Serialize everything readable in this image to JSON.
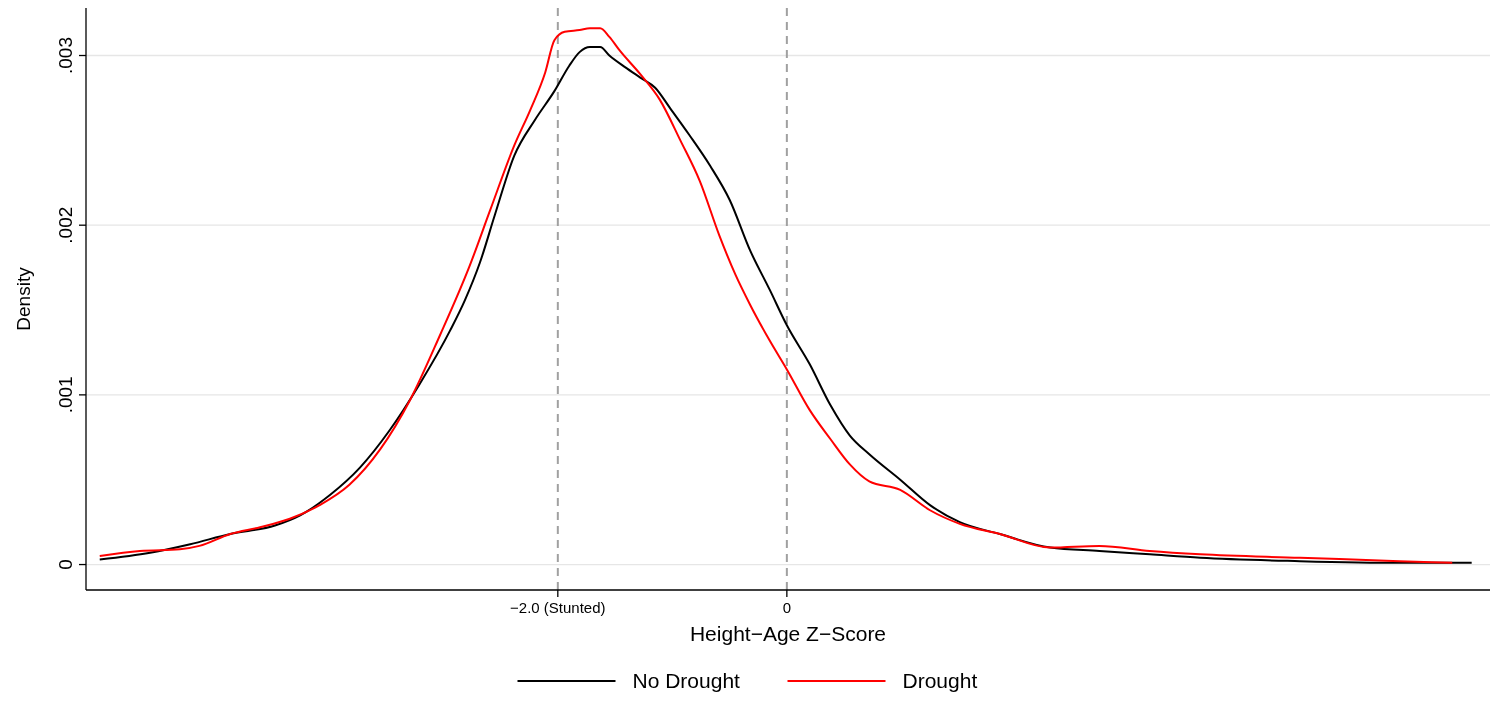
{
  "chart_data": {
    "type": "line",
    "xlabel": "Height−Age Z−Score",
    "ylabel": "Density",
    "xlim": [
      -6.12,
      6.14
    ],
    "ylim": [
      -0.00015,
      0.00328
    ],
    "xticks": [
      {
        "value": -2,
        "label": "−2.0 (Stunted)"
      },
      0
    ],
    "yticks": [
      {
        "value": 0,
        "label": "0"
      },
      {
        "value": 0.001,
        "label": ".001"
      },
      {
        "value": 0.002,
        "label": ".002"
      },
      {
        "value": 0.003,
        "label": ".003"
      }
    ],
    "grid": "y",
    "legend": "bottom",
    "line_style": "solid",
    "marker": "none",
    "ref_lines": [
      {
        "axis": "x",
        "value": -2,
        "color": "#a0a0a0",
        "line_style": "dashed"
      },
      {
        "axis": "x",
        "value": 0,
        "color": "#a0a0a0",
        "line_style": "dashed"
      }
    ],
    "series": [
      {
        "name": "No Drought",
        "color": "#000000",
        "x": [
          -6.0,
          -5.56,
          -5.21,
          -4.86,
          -4.47,
          -4.25,
          -3.99,
          -3.73,
          -3.47,
          -3.21,
          -2.94,
          -2.81,
          -2.68,
          -2.55,
          -2.38,
          -2.2,
          -2.03,
          -1.9,
          -1.81,
          -1.72,
          -1.63,
          -1.55,
          -1.41,
          -1.28,
          -1.15,
          -1.02,
          -0.85,
          -0.67,
          -0.5,
          -0.32,
          -0.15,
          0,
          0.2,
          0.38,
          0.55,
          0.72,
          0.99,
          1.25,
          1.51,
          1.86,
          2.3,
          2.73,
          3.17,
          3.61,
          4.48,
          5.35,
          5.98
        ],
        "values": [
          3e-05,
          7e-05,
          0.00012,
          0.00018,
          0.00023,
          0.00029,
          0.00041,
          0.00057,
          0.00079,
          0.00106,
          0.00138,
          0.00156,
          0.00178,
          0.00206,
          0.00241,
          0.00262,
          0.00279,
          0.00294,
          0.00302,
          0.00305,
          0.00305,
          0.003,
          0.00293,
          0.00287,
          0.00281,
          0.00269,
          0.00253,
          0.00235,
          0.00215,
          0.00185,
          0.00162,
          0.00141,
          0.00118,
          0.00094,
          0.00076,
          0.00065,
          0.0005,
          0.00035,
          0.00025,
          0.00018,
          0.0001,
          8e-05,
          6e-05,
          4e-05,
          2e-05,
          1e-05,
          1e-05
        ]
      },
      {
        "name": "Drought",
        "color": "#ff0000",
        "x": [
          -6.0,
          -5.65,
          -5.3,
          -5.13,
          -4.86,
          -4.6,
          -4.34,
          -4.08,
          -3.82,
          -3.55,
          -3.29,
          -3.03,
          -2.77,
          -2.59,
          -2.38,
          -2.24,
          -2.11,
          -2.03,
          -1.94,
          -1.81,
          -1.72,
          -1.63,
          -1.55,
          -1.46,
          -1.28,
          -1.11,
          -0.93,
          -0.76,
          -0.59,
          -0.45,
          -0.32,
          -0.15,
          0,
          0.2,
          0.38,
          0.55,
          0.72,
          0.99,
          1.25,
          1.51,
          1.86,
          2.3,
          2.73,
          3.17,
          3.61,
          4.48,
          5.35,
          5.81
        ],
        "values": [
          5e-05,
          8e-05,
          9e-05,
          0.00011,
          0.00018,
          0.00022,
          0.00027,
          0.00035,
          0.00047,
          0.00068,
          0.00097,
          0.00135,
          0.00176,
          0.00209,
          0.00247,
          0.00268,
          0.0029,
          0.00309,
          0.00314,
          0.00315,
          0.00316,
          0.00316,
          0.00311,
          0.00303,
          0.00289,
          0.00274,
          0.0025,
          0.00226,
          0.00194,
          0.00171,
          0.00153,
          0.00132,
          0.00115,
          0.00091,
          0.00074,
          0.00059,
          0.00049,
          0.00044,
          0.00032,
          0.00024,
          0.00018,
          0.0001,
          0.00011,
          8e-05,
          6e-05,
          4e-05,
          2e-05,
          1e-05
        ]
      }
    ]
  }
}
